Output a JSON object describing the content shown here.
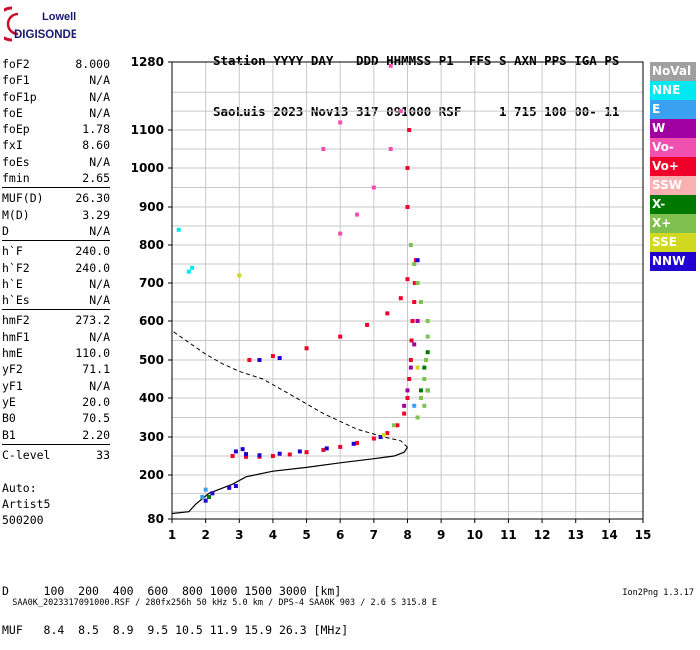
{
  "logo": {
    "line1": "Lowell",
    "line2": "DIGISONDE"
  },
  "header": {
    "line1": "Station YYYY DAY   DDD HHMMSS P1  FFS S AXN PPS IGA PS",
    "line2": "SaoLuis 2023 Nov13 317 091000 RSF     1 715 100 00- 11"
  },
  "params": {
    "group1": [
      {
        "name": "foF2",
        "value": "8.000"
      },
      {
        "name": "foF1",
        "value": "N/A"
      },
      {
        "name": "foF1p",
        "value": "N/A"
      },
      {
        "name": "foE",
        "value": "N/A"
      },
      {
        "name": "foEp",
        "value": "1.78"
      },
      {
        "name": "fxI",
        "value": "8.60"
      },
      {
        "name": "foEs",
        "value": "N/A"
      },
      {
        "name": "fmin",
        "value": "2.65"
      }
    ],
    "group2": [
      {
        "name": "MUF(D)",
        "value": "26.30"
      },
      {
        "name": "M(D)",
        "value": "3.29"
      },
      {
        "name": "D",
        "value": "N/A"
      }
    ],
    "group3": [
      {
        "name": "h`F",
        "value": "240.0"
      },
      {
        "name": "h`F2",
        "value": "240.0"
      },
      {
        "name": "h`E",
        "value": "N/A"
      },
      {
        "name": "h`Es",
        "value": "N/A"
      }
    ],
    "group4": [
      {
        "name": "hmF2",
        "value": "273.2"
      },
      {
        "name": "hmF1",
        "value": "N/A"
      },
      {
        "name": "hmE",
        "value": "110.0"
      },
      {
        "name": "yF2",
        "value": "71.1"
      },
      {
        "name": "yF1",
        "value": "N/A"
      },
      {
        "name": "yE",
        "value": "20.0"
      },
      {
        "name": "B0",
        "value": "70.5"
      },
      {
        "name": "B1",
        "value": "2.20"
      }
    ],
    "group5": [
      {
        "name": "C-level",
        "value": "33"
      }
    ]
  },
  "auto": {
    "line1": "Auto:",
    "line2": "Artist5",
    "line3": "500200"
  },
  "legend": [
    {
      "label": "NoVal",
      "color": "#a0a0a0"
    },
    {
      "label": "NNE",
      "color": "#00e8f0"
    },
    {
      "label": "E",
      "color": "#3aa0f0"
    },
    {
      "label": "W",
      "color": "#a000a0"
    },
    {
      "label": "Vo-",
      "color": "#f050b0"
    },
    {
      "label": "Vo+",
      "color": "#f00028"
    },
    {
      "label": "SSW",
      "color": "#f8b0b0"
    },
    {
      "label": "X-",
      "color": "#007800"
    },
    {
      "label": "X+",
      "color": "#80c050"
    },
    {
      "label": "SSE",
      "color": "#d0d820"
    },
    {
      "label": "NNW",
      "color": "#2000d0"
    }
  ],
  "bottom": {
    "line1": "D     100  200  400  600  800 1000 1500 3000 [km]",
    "line2": "MUF   8.4  8.5  8.9  9.5 10.5 11.9 15.9 26.3 [MHz]"
  },
  "footer": {
    "left": "SAA0K_2023317091000.RSF / 280fx256h 50 kHz 5.0 km / DPS-4 SAA0K 903 / 2.6 S 315.8 E",
    "right": "Ion2Png 1.3.17"
  },
  "chart_data": {
    "type": "scatter",
    "x_range": [
      1,
      15
    ],
    "y_range": [
      80,
      1280
    ],
    "x_ticks": [
      "1",
      "2",
      "3",
      "4",
      "5",
      "6",
      "7",
      "8",
      "9",
      "10",
      "11",
      "12",
      "13",
      "14",
      "15"
    ],
    "y_ticks": [
      "80",
      "200",
      "300",
      "400",
      "500",
      "600",
      "700",
      "800",
      "900",
      "1000",
      "1100",
      "1280"
    ],
    "grid": true,
    "series": [
      {
        "name": "Vo+",
        "color": "#f00028",
        "points": [
          [
            2.8,
            250
          ],
          [
            3.2,
            248
          ],
          [
            3.6,
            248
          ],
          [
            4.0,
            250
          ],
          [
            4.5,
            254
          ],
          [
            5.0,
            260
          ],
          [
            5.5,
            266
          ],
          [
            6.0,
            274
          ],
          [
            6.5,
            284
          ],
          [
            7.0,
            296
          ],
          [
            7.4,
            310
          ],
          [
            7.7,
            330
          ],
          [
            7.9,
            360
          ],
          [
            8.0,
            400
          ],
          [
            8.05,
            450
          ],
          [
            8.1,
            500
          ],
          [
            8.12,
            550
          ],
          [
            8.15,
            600
          ],
          [
            8.2,
            650
          ],
          [
            8.22,
            700
          ],
          [
            8.25,
            760
          ],
          [
            8.0,
            900
          ],
          [
            8.0,
            1000
          ],
          [
            8.05,
            1100
          ],
          [
            3.3,
            500
          ],
          [
            4.0,
            510
          ],
          [
            5.0,
            530
          ],
          [
            6.0,
            560
          ],
          [
            6.8,
            590
          ],
          [
            7.4,
            620
          ],
          [
            7.8,
            660
          ],
          [
            8.0,
            710
          ]
        ]
      },
      {
        "name": "Vo-",
        "color": "#f050b0",
        "points": [
          [
            6.0,
            830
          ],
          [
            6.5,
            880
          ],
          [
            7.0,
            950
          ],
          [
            7.5,
            1050
          ],
          [
            7.8,
            1150
          ],
          [
            5.5,
            1050
          ],
          [
            6.0,
            1120
          ],
          [
            7.5,
            1270
          ]
        ]
      },
      {
        "name": "NNW",
        "color": "#2000d0",
        "points": [
          [
            2.9,
            262
          ],
          [
            3.2,
            255
          ],
          [
            3.6,
            252
          ],
          [
            4.2,
            256
          ],
          [
            4.8,
            262
          ],
          [
            5.6,
            270
          ],
          [
            6.4,
            282
          ],
          [
            7.2,
            300
          ],
          [
            3.6,
            500
          ],
          [
            4.2,
            505
          ],
          [
            3.1,
            268
          ],
          [
            2.0,
            130
          ],
          [
            2.2,
            150
          ],
          [
            2.7,
            165
          ],
          [
            2.9,
            170
          ],
          [
            8.3,
            760
          ],
          [
            8.6,
            420
          ]
        ]
      },
      {
        "name": "X+",
        "color": "#80c050",
        "points": [
          [
            8.3,
            350
          ],
          [
            8.4,
            400
          ],
          [
            8.5,
            450
          ],
          [
            8.55,
            500
          ],
          [
            8.6,
            560
          ],
          [
            8.6,
            600
          ],
          [
            8.4,
            650
          ],
          [
            8.3,
            700
          ],
          [
            8.2,
            750
          ],
          [
            8.1,
            800
          ],
          [
            7.6,
            330
          ],
          [
            8.5,
            380
          ],
          [
            8.6,
            420
          ]
        ]
      },
      {
        "name": "X-",
        "color": "#007800",
        "points": [
          [
            8.4,
            420
          ],
          [
            8.5,
            480
          ],
          [
            8.6,
            520
          ],
          [
            2.1,
            140
          ]
        ]
      },
      {
        "name": "SSE",
        "color": "#d0d820",
        "points": [
          [
            3.0,
            720
          ],
          [
            7.3,
            305
          ],
          [
            8.3,
            480
          ]
        ]
      },
      {
        "name": "W",
        "color": "#a000a0",
        "points": [
          [
            8.0,
            420
          ],
          [
            8.1,
            480
          ],
          [
            8.2,
            540
          ],
          [
            8.3,
            600
          ],
          [
            7.9,
            380
          ]
        ]
      },
      {
        "name": "NNE",
        "color": "#00e8f0",
        "points": [
          [
            1.5,
            730
          ],
          [
            1.6,
            740
          ],
          [
            1.2,
            840
          ]
        ]
      },
      {
        "name": "E",
        "color": "#3aa0f0",
        "points": [
          [
            8.2,
            380
          ],
          [
            2.0,
            160
          ],
          [
            1.9,
            140
          ]
        ]
      }
    ],
    "profile_solid": [
      [
        1.0,
        95
      ],
      [
        1.5,
        100
      ],
      [
        1.7,
        120
      ],
      [
        2.1,
        150
      ],
      [
        2.8,
        175
      ],
      [
        3.2,
        195
      ],
      [
        4.0,
        210
      ],
      [
        5.0,
        220
      ],
      [
        6.0,
        232
      ],
      [
        7.0,
        243
      ],
      [
        7.6,
        250
      ],
      [
        7.9,
        260
      ],
      [
        8.0,
        273
      ]
    ],
    "profile_dashed": [
      [
        8.0,
        273
      ],
      [
        7.8,
        290
      ],
      [
        7.3,
        300
      ],
      [
        6.5,
        320
      ],
      [
        5.5,
        360
      ],
      [
        4.5,
        410
      ],
      [
        3.7,
        450
      ],
      [
        3.0,
        470
      ],
      [
        2.5,
        490
      ],
      [
        2.0,
        515
      ],
      [
        1.5,
        545
      ],
      [
        1.0,
        575
      ]
    ]
  }
}
